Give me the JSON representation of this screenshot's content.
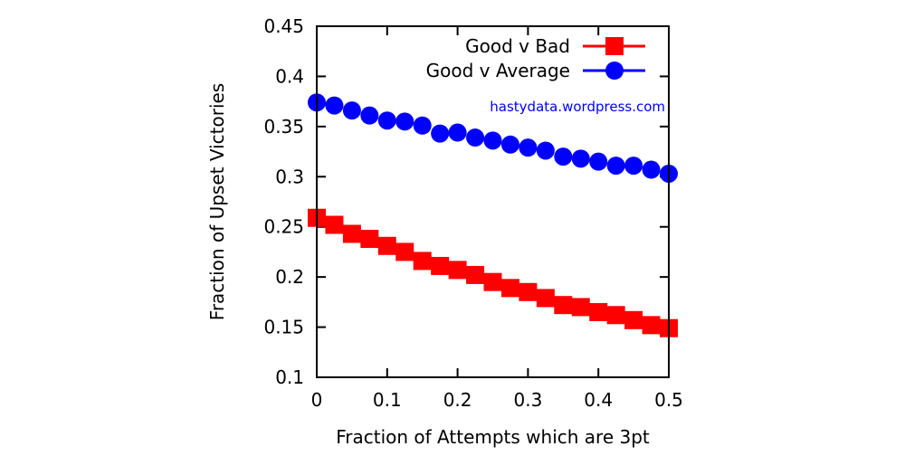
{
  "chart_data": {
    "type": "line",
    "xlabel": "Fraction of Attempts which are 3pt",
    "ylabel": "Fraction of Upset Victories",
    "xlim": [
      0,
      0.5
    ],
    "ylim": [
      0.1,
      0.45
    ],
    "xticks": [
      0,
      0.1,
      0.2,
      0.3,
      0.4,
      0.5
    ],
    "xtick_labels": [
      "0",
      "0.1",
      "0.2",
      "0.3",
      "0.4",
      "0.5"
    ],
    "yticks": [
      0.1,
      0.15,
      0.2,
      0.25,
      0.3,
      0.35,
      0.4,
      0.45
    ],
    "ytick_labels": [
      "0.1",
      "0.15",
      "0.2",
      "0.25",
      "0.3",
      "0.35",
      "0.4",
      "0.45"
    ],
    "grid": false,
    "legend_position": "top-right",
    "annotation": "hastydata.wordpress.com",
    "x": [
      0,
      0.025,
      0.05,
      0.075,
      0.1,
      0.125,
      0.15,
      0.175,
      0.2,
      0.225,
      0.25,
      0.275,
      0.3,
      0.325,
      0.35,
      0.375,
      0.4,
      0.425,
      0.45,
      0.475,
      0.5
    ],
    "series": [
      {
        "name": "Good v Bad",
        "color": "#ff0000",
        "marker": "square",
        "values": [
          0.259,
          0.252,
          0.243,
          0.238,
          0.231,
          0.225,
          0.216,
          0.211,
          0.207,
          0.202,
          0.195,
          0.189,
          0.185,
          0.179,
          0.172,
          0.17,
          0.165,
          0.162,
          0.157,
          0.152,
          0.149
        ]
      },
      {
        "name": "Good v Average",
        "color": "#0000ff",
        "marker": "circle",
        "values": [
          0.374,
          0.371,
          0.366,
          0.361,
          0.356,
          0.355,
          0.351,
          0.343,
          0.344,
          0.339,
          0.336,
          0.332,
          0.329,
          0.326,
          0.32,
          0.318,
          0.315,
          0.311,
          0.311,
          0.307,
          0.303
        ]
      }
    ]
  }
}
